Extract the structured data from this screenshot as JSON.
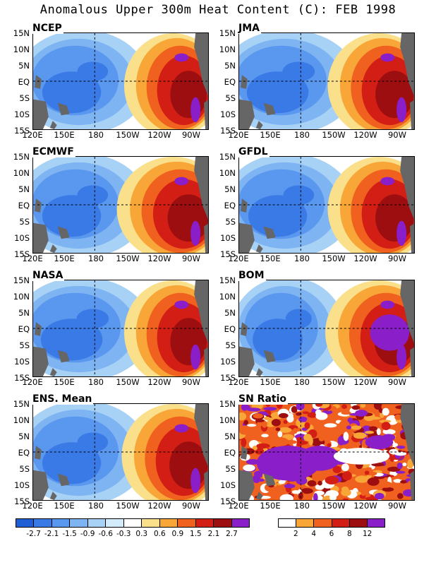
{
  "title": "Anomalous Upper 300m Heat Content (C): FEB 1998",
  "lat_labels": [
    "15N",
    "10N",
    "5N",
    "EQ",
    "5S",
    "10S",
    "15S"
  ],
  "lon_labels": [
    "120E",
    "150E",
    "180",
    "150W",
    "120W",
    "90W"
  ],
  "panels": [
    {
      "name": "NCEP",
      "warm_width": 1.0,
      "cool_strength": 1.0
    },
    {
      "name": "JMA",
      "warm_width": 1.05,
      "cool_strength": 1.05
    },
    {
      "name": "ECMWF",
      "warm_width": 1.15,
      "cool_strength": 1.0
    },
    {
      "name": "GFDL",
      "warm_width": 1.05,
      "cool_strength": 1.0
    },
    {
      "name": "NASA",
      "warm_width": 1.0,
      "cool_strength": 1.05
    },
    {
      "name": "BOM",
      "warm_width": 1.1,
      "cool_strength": 0.85
    },
    {
      "name": "ENS. Mean",
      "warm_width": 1.05,
      "cool_strength": 1.0
    },
    {
      "name": "SN Ratio",
      "warm_width": 1.0,
      "cool_strength": 1.0
    }
  ],
  "colorbar_anomaly": {
    "labels": [
      "-2.7",
      "-2.1",
      "-1.5",
      "-0.9",
      "-0.6",
      "-0.3",
      "0.3",
      "0.6",
      "0.9",
      "1.5",
      "2.1",
      "2.7"
    ],
    "colors": [
      "#1e5fd6",
      "#3a7ae6",
      "#5a97ee",
      "#7eb4f2",
      "#a8d2f5",
      "#d2ecfb",
      "#ffffff",
      "#fbe08c",
      "#f8a638",
      "#f0601e",
      "#d21e14",
      "#9c0e10",
      "#8a1ec8"
    ]
  },
  "colorbar_sn": {
    "labels": [
      "2",
      "4",
      "6",
      "8",
      "12"
    ],
    "colors": [
      "#ffffff",
      "#f8a638",
      "#f0601e",
      "#d21e14",
      "#9c0e10",
      "#8a1ec8"
    ]
  },
  "colors": {
    "land": "#666666"
  }
}
